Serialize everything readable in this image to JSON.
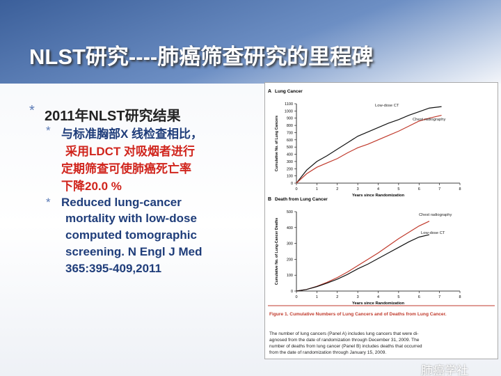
{
  "slide": {
    "title": "NLST研究----肺癌筛查研究的里程碑",
    "bullet": "2011年NLST研究结果",
    "sub_cn": [
      "与标准胸部X 线检查相比，",
      "采用LDCT 对吸烟者进行",
      "定期筛查可使肺癌死亡率",
      "下降20.0 %"
    ],
    "sub_en": [
      "Reduced lung-cancer",
      "mortality with low-dose",
      "computed tomographic",
      "screening. N Engl J Med",
      "365:395-409,2011"
    ]
  },
  "figure": {
    "panels": [
      {
        "type": "line",
        "label": "A",
        "title": "Lung Cancer",
        "ylabel": "Cumulative No. of Lung Cancers",
        "xlabel": "Years since Randomization",
        "xlim": [
          0,
          8
        ],
        "xticks": [
          0,
          1,
          2,
          3,
          4,
          5,
          6,
          7,
          8
        ],
        "ylim": [
          0,
          1100
        ],
        "yticks": [
          0,
          100,
          200,
          300,
          400,
          500,
          600,
          700,
          800,
          900,
          1000,
          1100
        ],
        "x": [
          0,
          0.5,
          1,
          1.5,
          2,
          2.5,
          3,
          3.5,
          4,
          4.5,
          5,
          5.5,
          6,
          6.5,
          7.1
        ],
        "series": [
          {
            "name": "Low-dose CT",
            "color": "#111111",
            "values": [
              0,
              180,
              300,
              380,
              470,
              560,
              650,
              710,
              770,
              830,
              880,
              940,
              990,
              1040,
              1060
            ]
          },
          {
            "name": "Chest radiography",
            "color": "#c0392b",
            "values": [
              0,
              130,
              220,
              280,
              340,
              420,
              490,
              540,
              600,
              660,
              720,
              790,
              860,
              900,
              940
            ]
          }
        ]
      },
      {
        "type": "line",
        "label": "B",
        "title": "Death from Lung Cancer",
        "ylabel": "Cumulative No. of Lung-Cancer Deaths",
        "xlabel": "Years since Randomization",
        "xlim": [
          0,
          8
        ],
        "xticks": [
          0,
          1,
          2,
          3,
          4,
          5,
          6,
          7,
          8
        ],
        "ylim": [
          0,
          500
        ],
        "yticks": [
          0,
          100,
          200,
          300,
          400,
          500
        ],
        "x": [
          0,
          0.5,
          1,
          1.5,
          2,
          2.5,
          3,
          3.5,
          4,
          4.5,
          5,
          5.5,
          6,
          6.5
        ],
        "series": [
          {
            "name": "Chest radiography",
            "color": "#c0392b",
            "values": [
              0,
              10,
              30,
              55,
              85,
              120,
              160,
              200,
              240,
              285,
              330,
              370,
              410,
              440
            ]
          },
          {
            "name": "Low-dose CT",
            "color": "#111111",
            "values": [
              0,
              10,
              28,
              50,
              75,
              105,
              140,
              170,
              205,
              240,
              275,
              310,
              340,
              355
            ]
          }
        ]
      }
    ],
    "caption_title": "Figure 1. Cumulative Numbers of Lung Cancers and of Deaths from Lung Cancer.",
    "caption_lines": [
      "The number of lung cancers (Panel A) includes lung cancers that were di-",
      "agnosed from the date of randomization through December 31, 2009. The",
      "number of deaths from lung cancer (Panel B) includes deaths that occurred",
      "from the date of randomization through January 15, 2009."
    ]
  },
  "watermark": "肺癌学社"
}
